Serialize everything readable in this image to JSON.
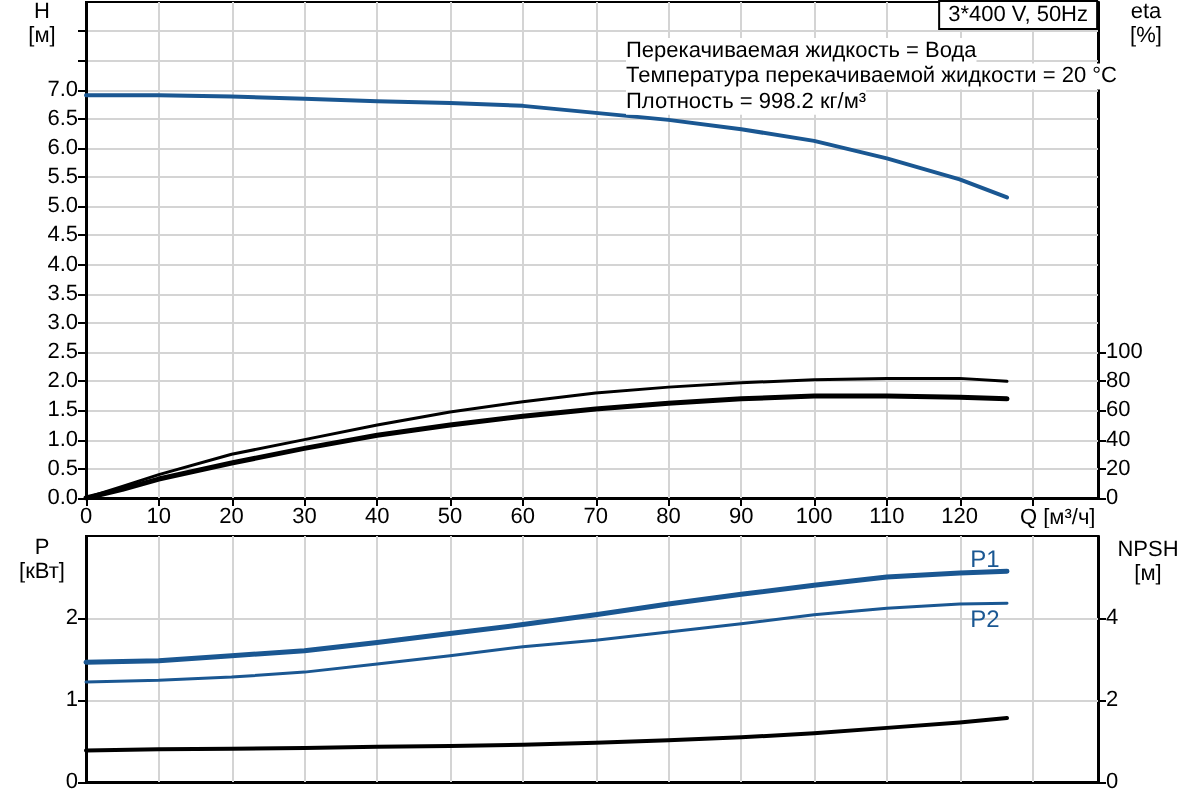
{
  "chart_data": [
    {
      "type": "line",
      "title": "3*400 V, 50Hz",
      "xlabel": "Q [м³/ч]",
      "ylabel": "H\n[м]",
      "y2label": "eta\n[%]",
      "annotations": [
        "Перекачиваемая жидкость = Вода",
        "Температура перекачиваемой жидкости = 20 °C",
        "Плотность = 998.2 кг/м³"
      ],
      "xlim": [
        0,
        139
      ],
      "xticks": [
        0,
        10,
        20,
        30,
        40,
        50,
        60,
        70,
        80,
        90,
        100,
        110,
        120,
        {
          "value": 130,
          "label": null
        }
      ],
      "ylim": [
        0,
        8.5
      ],
      "yticks": [
        {
          "value": 0,
          "label": "0.0"
        },
        0.5,
        {
          "value": 1,
          "label": "1.0"
        },
        1.5,
        {
          "value": 2,
          "label": "2.0"
        },
        2.5,
        {
          "value": 3,
          "label": "3.0"
        },
        3.5,
        {
          "value": 4,
          "label": "4.0"
        },
        4.5,
        {
          "value": 5,
          "label": "5.0"
        },
        5.5,
        {
          "value": 6,
          "label": "6.0"
        },
        6.5,
        {
          "value": 7,
          "label": "7.0"
        },
        {
          "value": 7.5,
          "label": null
        },
        {
          "value": 8,
          "label": null
        }
      ],
      "y2lim": [
        0,
        340
      ],
      "y2ticks": [
        0,
        20,
        40,
        60,
        80,
        100
      ],
      "grid": true,
      "marker": "none",
      "series": [
        {
          "color": "#1a5792",
          "x": [
            0,
            10,
            20,
            30,
            40,
            50,
            60,
            70,
            80,
            90,
            100,
            110,
            120,
            126.5
          ],
          "values": [
            6.9,
            6.9,
            6.88,
            6.84,
            6.8,
            6.77,
            6.72,
            6.6,
            6.48,
            6.32,
            6.12,
            5.82,
            5.46,
            5.15
          ]
        },
        {
          "color": "#000000",
          "axis": "y2",
          "x": [
            0,
            5,
            10,
            20,
            30,
            40,
            50,
            60,
            70,
            80,
            90,
            100,
            110,
            120,
            126.5
          ],
          "values": [
            0,
            8,
            16,
            30,
            40,
            50,
            59,
            66,
            72,
            76,
            79,
            81,
            82,
            82,
            80
          ]
        },
        {
          "color": "#000000",
          "axis": "y2",
          "x": [
            0,
            5,
            10,
            20,
            30,
            40,
            50,
            60,
            70,
            80,
            90,
            100,
            110,
            120,
            126.5
          ],
          "values": [
            0,
            6,
            13,
            24,
            34,
            43,
            50,
            56,
            61,
            65,
            68,
            70,
            70,
            69,
            68
          ]
        }
      ]
    },
    {
      "type": "line",
      "ylabel": "P\n[кВт]",
      "y2label": "NPSH\n[м]",
      "xlim": [
        0,
        139
      ],
      "xticks": [
        0,
        10,
        20,
        30,
        40,
        50,
        60,
        70,
        80,
        90,
        100,
        110,
        120,
        130
      ],
      "tick_labels": "y",
      "ylim": [
        0,
        3
      ],
      "yticks": [
        0,
        1,
        2
      ],
      "y2lim": [
        0,
        6
      ],
      "y2ticks": [
        0,
        2,
        4
      ],
      "grid": true,
      "marker": "none",
      "series": [
        {
          "name": "P1",
          "color": "#1a5792",
          "x": [
            0,
            10,
            20,
            30,
            40,
            50,
            60,
            70,
            80,
            90,
            100,
            110,
            120,
            126.5
          ],
          "values": [
            1.46,
            1.48,
            1.54,
            1.6,
            1.7,
            1.81,
            1.92,
            2.04,
            2.17,
            2.29,
            2.4,
            2.5,
            2.55,
            2.57
          ]
        },
        {
          "name": "P2",
          "color": "#1a5792",
          "x": [
            0,
            10,
            20,
            30,
            40,
            50,
            60,
            70,
            80,
            90,
            100,
            110,
            120,
            126.5
          ],
          "values": [
            1.22,
            1.24,
            1.28,
            1.34,
            1.44,
            1.54,
            1.65,
            1.73,
            1.83,
            1.93,
            2.04,
            2.12,
            2.17,
            2.18
          ]
        },
        {
          "color": "#000000",
          "axis": "y2",
          "x": [
            0,
            10,
            20,
            30,
            40,
            50,
            60,
            70,
            80,
            90,
            100,
            110,
            120,
            126.5
          ],
          "values": [
            0.77,
            0.8,
            0.81,
            0.83,
            0.86,
            0.88,
            0.91,
            0.96,
            1.02,
            1.09,
            1.19,
            1.32,
            1.45,
            1.56
          ]
        }
      ]
    }
  ]
}
